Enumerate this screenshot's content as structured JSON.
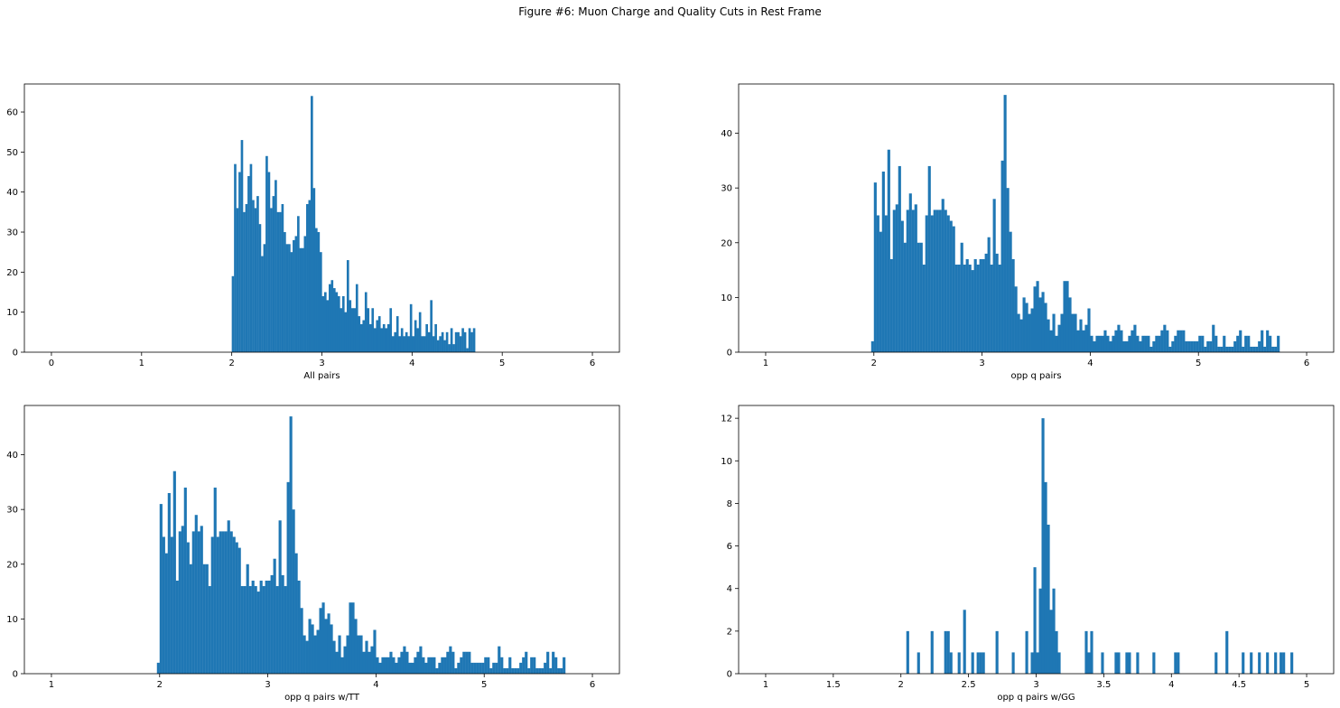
{
  "figure": {
    "title": "Figure #6: Muon Charge and Quality Cuts in Rest Frame"
  },
  "colors": {
    "bar": "#1f77b4",
    "axis": "#000000",
    "background": "#ffffff"
  },
  "chart_data": [
    {
      "type": "bar",
      "xlabel": "All pairs",
      "ylabel": "",
      "xlim": [
        -0.3,
        6.3
      ],
      "ylim": [
        0,
        67
      ],
      "xticks": [
        0,
        1,
        2,
        3,
        4,
        5,
        6
      ],
      "yticks": [
        0,
        10,
        20,
        30,
        40,
        50,
        60
      ],
      "bin_start": 2.0,
      "bin_width": 0.025,
      "values": [
        19,
        47,
        36,
        45,
        53,
        35,
        37,
        44,
        47,
        38,
        36,
        39,
        32,
        24,
        27,
        49,
        45,
        36,
        39,
        43,
        35,
        35,
        37,
        30,
        27,
        27,
        25,
        28,
        29,
        34,
        26,
        26,
        29,
        37,
        38,
        64,
        41,
        31,
        30,
        25,
        14,
        15,
        13,
        17,
        18,
        16,
        15,
        14,
        11,
        14,
        10,
        23,
        13,
        11,
        11,
        17,
        9,
        7,
        8,
        15,
        11,
        7,
        11,
        6,
        8,
        9,
        6,
        7,
        6,
        7,
        11,
        4,
        5,
        9,
        4,
        6,
        4,
        5,
        4,
        12,
        4,
        8,
        6,
        10,
        4,
        4,
        7,
        5,
        13,
        4,
        7,
        3,
        4,
        5,
        3,
        5,
        2,
        6,
        2,
        5,
        5,
        4,
        6,
        5,
        1,
        6,
        5,
        6
      ]
    },
    {
      "type": "bar",
      "xlabel": "opp q pairs",
      "ylabel": "",
      "xlim": [
        0.75,
        6.25
      ],
      "ylim": [
        0,
        49
      ],
      "xticks": [
        1,
        2,
        3,
        4,
        5,
        6
      ],
      "yticks": [
        0,
        10,
        20,
        30,
        40
      ],
      "bin_start": 1.975,
      "bin_width": 0.025,
      "values": [
        2,
        31,
        25,
        22,
        33,
        25,
        37,
        17,
        26,
        27,
        34,
        24,
        20,
        26,
        29,
        26,
        27,
        20,
        20,
        16,
        25,
        34,
        25,
        26,
        26,
        26,
        28,
        26,
        25,
        24,
        23,
        16,
        16,
        20,
        16,
        17,
        16,
        15,
        17,
        16,
        17,
        17,
        18,
        21,
        16,
        28,
        18,
        16,
        35,
        47,
        30,
        22,
        17,
        12,
        7,
        6,
        10,
        9,
        7,
        8,
        12,
        13,
        10,
        11,
        9,
        6,
        4,
        7,
        3,
        5,
        7,
        13,
        13,
        10,
        7,
        7,
        4,
        6,
        4,
        5,
        8,
        3,
        2,
        3,
        3,
        3,
        4,
        3,
        2,
        3,
        4,
        5,
        4,
        2,
        2,
        3,
        4,
        5,
        3,
        2,
        3,
        3,
        3,
        1,
        2,
        3,
        3,
        4,
        5,
        4,
        1,
        2,
        3,
        4,
        4,
        4,
        2,
        2,
        2,
        2,
        2,
        3,
        3,
        1,
        2,
        2,
        5,
        3,
        1,
        1,
        3,
        1,
        1,
        1,
        2,
        3,
        4,
        1,
        3,
        3,
        1,
        1,
        1,
        2,
        4,
        1,
        4,
        3,
        1,
        1,
        3
      ]
    },
    {
      "type": "bar",
      "xlabel": "opp q pairs w/TT",
      "ylabel": "",
      "xlim": [
        0.75,
        6.25
      ],
      "ylim": [
        0,
        49
      ],
      "xticks": [
        1,
        2,
        3,
        4,
        5,
        6
      ],
      "yticks": [
        0,
        10,
        20,
        30,
        40
      ],
      "bin_start": 1.975,
      "bin_width": 0.025,
      "values": [
        2,
        31,
        25,
        22,
        33,
        25,
        37,
        17,
        26,
        27,
        34,
        24,
        20,
        26,
        29,
        26,
        27,
        20,
        20,
        16,
        25,
        34,
        25,
        26,
        26,
        26,
        28,
        26,
        25,
        24,
        23,
        16,
        16,
        20,
        16,
        17,
        16,
        15,
        17,
        16,
        17,
        17,
        18,
        21,
        16,
        28,
        18,
        16,
        35,
        47,
        30,
        22,
        17,
        12,
        7,
        6,
        10,
        9,
        7,
        8,
        12,
        13,
        10,
        11,
        9,
        6,
        4,
        7,
        3,
        5,
        7,
        13,
        13,
        10,
        7,
        7,
        4,
        6,
        4,
        5,
        8,
        3,
        2,
        3,
        3,
        3,
        4,
        3,
        2,
        3,
        4,
        5,
        4,
        2,
        2,
        3,
        4,
        5,
        3,
        2,
        3,
        3,
        3,
        1,
        2,
        3,
        3,
        4,
        5,
        4,
        1,
        2,
        3,
        4,
        4,
        4,
        2,
        2,
        2,
        2,
        2,
        3,
        3,
        1,
        2,
        2,
        5,
        3,
        1,
        1,
        3,
        1,
        1,
        1,
        2,
        3,
        4,
        1,
        3,
        3,
        1,
        1,
        1,
        2,
        4,
        1,
        4,
        3,
        1,
        1,
        3
      ]
    },
    {
      "type": "bar",
      "xlabel": "opp q pairs w/GG",
      "ylabel": "",
      "xlim": [
        0.8,
        5.2
      ],
      "ylim": [
        0,
        12.6
      ],
      "xticks": [
        1.0,
        1.5,
        2.0,
        2.5,
        3.0,
        3.5,
        4.0,
        4.5,
        5.0
      ],
      "yticks": [
        0,
        2,
        4,
        6,
        8,
        10,
        12
      ],
      "bin_width": 0.02,
      "bins": [
        [
          2.04,
          2
        ],
        [
          2.12,
          1
        ],
        [
          2.22,
          2
        ],
        [
          2.32,
          2
        ],
        [
          2.34,
          2
        ],
        [
          2.36,
          1
        ],
        [
          2.42,
          1
        ],
        [
          2.46,
          3
        ],
        [
          2.52,
          1
        ],
        [
          2.56,
          1
        ],
        [
          2.58,
          1
        ],
        [
          2.6,
          1
        ],
        [
          2.7,
          2
        ],
        [
          2.82,
          1
        ],
        [
          2.92,
          2
        ],
        [
          2.96,
          1
        ],
        [
          2.98,
          5
        ],
        [
          3.0,
          1
        ],
        [
          3.02,
          4
        ],
        [
          3.04,
          12
        ],
        [
          3.06,
          9
        ],
        [
          3.08,
          7
        ],
        [
          3.1,
          3
        ],
        [
          3.12,
          4
        ],
        [
          3.14,
          2
        ],
        [
          3.16,
          1
        ],
        [
          3.36,
          2
        ],
        [
          3.38,
          1
        ],
        [
          3.4,
          2
        ],
        [
          3.48,
          1
        ],
        [
          3.58,
          1
        ],
        [
          3.6,
          1
        ],
        [
          3.66,
          1
        ],
        [
          3.68,
          1
        ],
        [
          3.74,
          1
        ],
        [
          3.86,
          1
        ],
        [
          4.02,
          1
        ],
        [
          4.04,
          1
        ],
        [
          4.32,
          1
        ],
        [
          4.4,
          2
        ],
        [
          4.52,
          1
        ],
        [
          4.58,
          1
        ],
        [
          4.64,
          1
        ],
        [
          4.7,
          1
        ],
        [
          4.76,
          1
        ],
        [
          4.8,
          1
        ],
        [
          4.82,
          1
        ],
        [
          4.88,
          1
        ]
      ]
    }
  ]
}
